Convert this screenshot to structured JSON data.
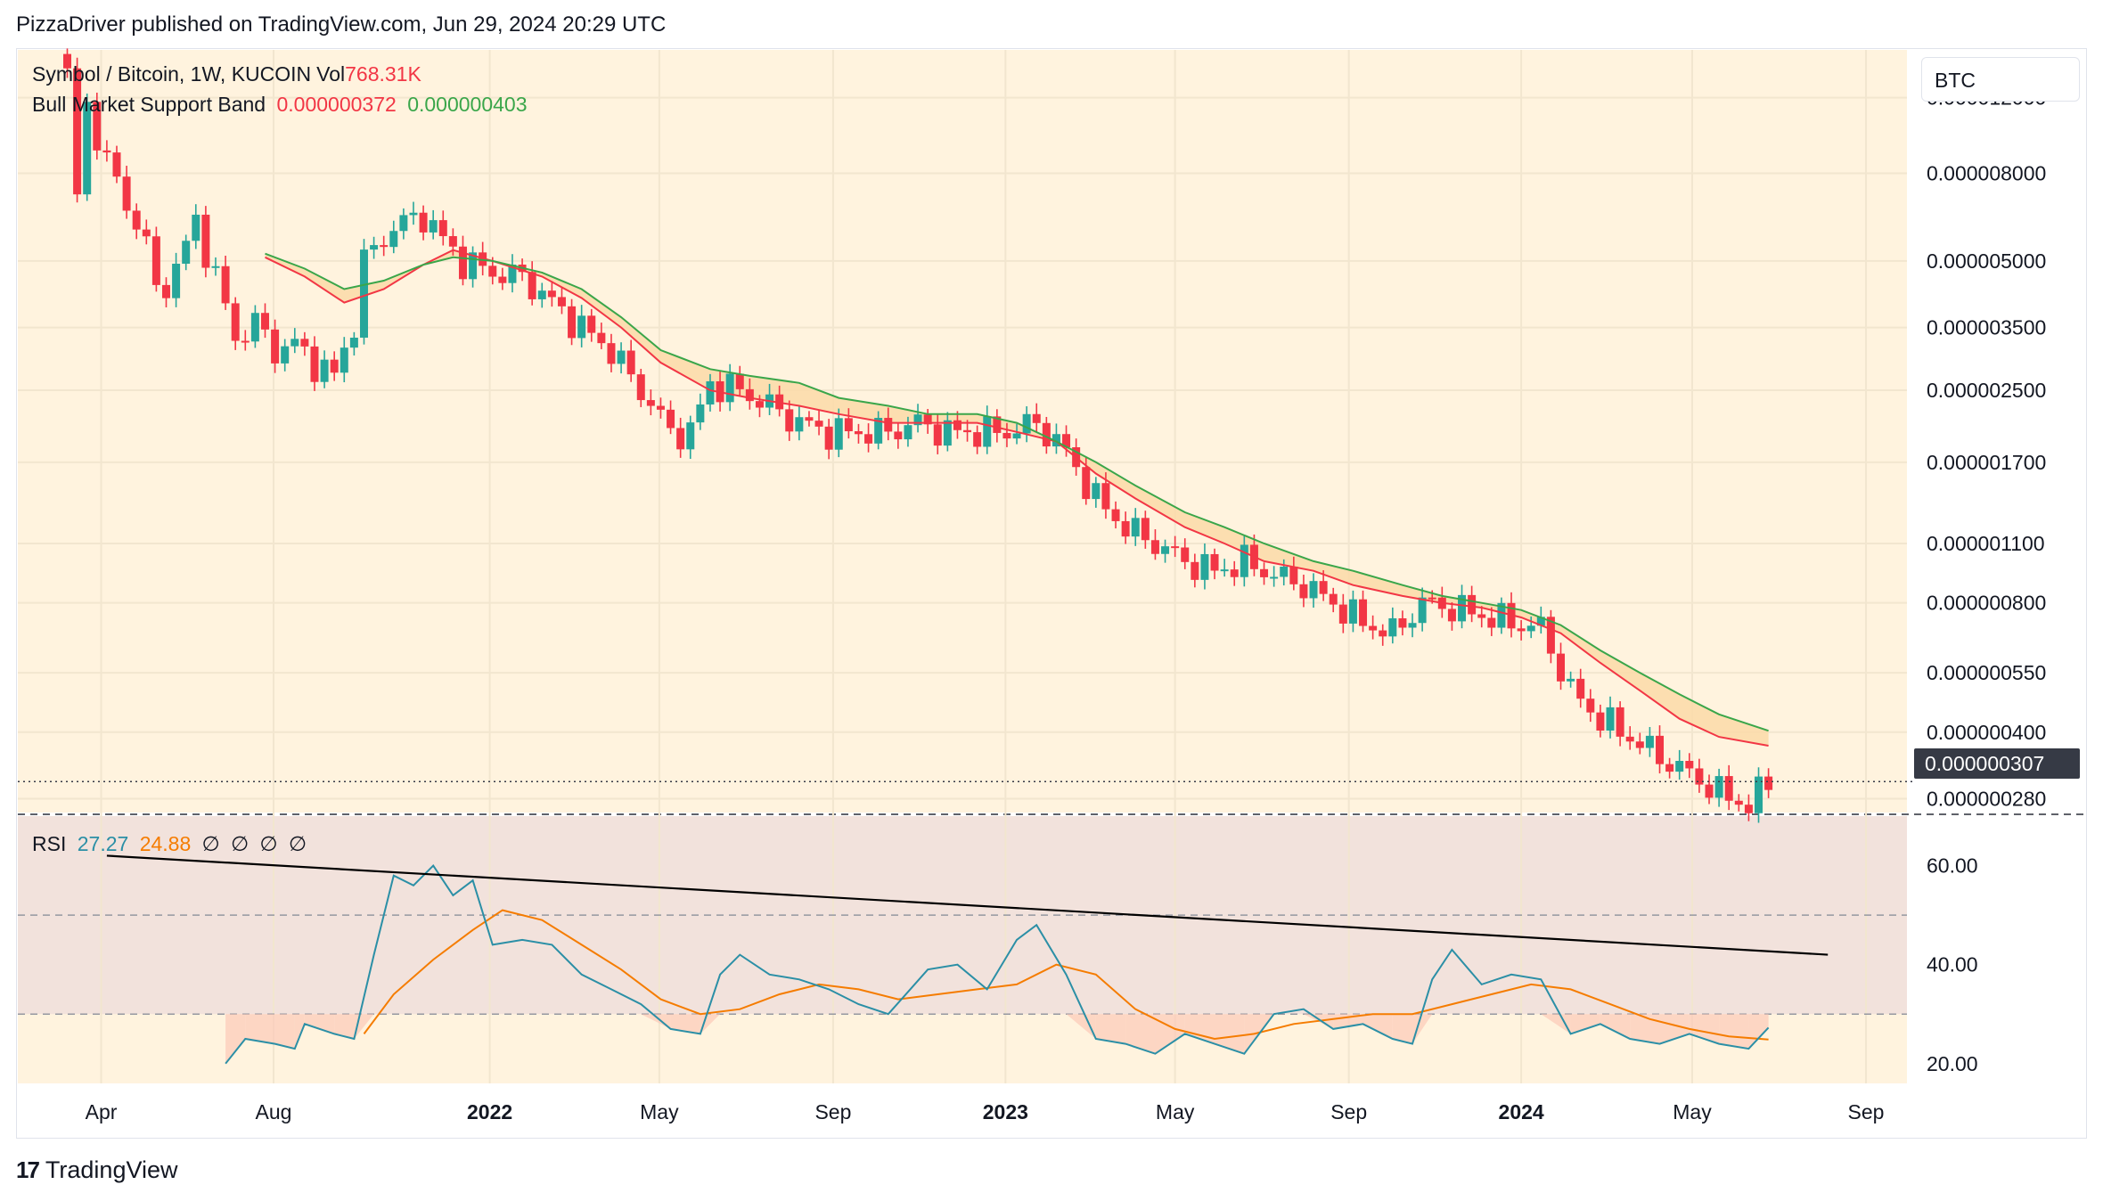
{
  "publisher_line": "PizzaDriver published on TradingView.com, Jun 29, 2024 20:29 UTC",
  "brand": {
    "name": "TradingView",
    "logo_icon": "tradingview-logo-icon"
  },
  "price_panel": {
    "symbol_line": "Symbol / Bitcoin, 1W, KUCOIN",
    "vol_label": "Vol",
    "vol_value": "768.31K",
    "band_label": "Bull Market Support Band",
    "band_value_1": "0.000000372",
    "band_value_2": "0.000000403",
    "currency_button": "BTC",
    "last_price": "0.000000307"
  },
  "rsi_panel": {
    "label": "RSI",
    "value_1": "27.27",
    "value_2": "24.88",
    "empty_values": [
      "∅",
      "∅",
      "∅",
      "∅"
    ]
  },
  "colors": {
    "background": "#fff3de",
    "up": "#26a69a",
    "down": "#f23645",
    "band_fill": "#fbd9a8",
    "band_fast": "#f23645",
    "band_slow": "#3aa64a",
    "rsi_line": "#2b8fa6",
    "rsi_ma": "#f57c00",
    "rsi_band": "#f2e2dc"
  },
  "chart_data": [
    {
      "type": "candlestick",
      "y_scale": "log",
      "ylim": [
        2.6e-07,
        1.55e-05
      ],
      "x_tick_labels": [
        {
          "label": "Apr",
          "date": "2021-04-01"
        },
        {
          "label": "Aug",
          "date": "2021-08-01"
        },
        {
          "label": "2022",
          "date": "2022-01-01"
        },
        {
          "label": "May",
          "date": "2022-05-01"
        },
        {
          "label": "Sep",
          "date": "2022-09-01"
        },
        {
          "label": "2023",
          "date": "2023-01-01"
        },
        {
          "label": "May",
          "date": "2023-05-01"
        },
        {
          "label": "Sep",
          "date": "2023-09-01"
        },
        {
          "label": "2024",
          "date": "2024-01-01"
        },
        {
          "label": "May",
          "date": "2024-05-01"
        },
        {
          "label": "Sep",
          "date": "2024-09-01"
        }
      ],
      "y_tick_labels": [
        "0.000012000",
        "0.000008000",
        "0.000005000",
        "0.000003500",
        "0.000002500",
        "0.000001700",
        "0.000001100",
        "0.000000800",
        "0.000000550",
        "0.000000400",
        "0.000000280"
      ],
      "y_tick_values": [
        1.2e-05,
        8e-06,
        5e-06,
        3.5e-06,
        2.5e-06,
        1.7e-06,
        1.1e-06,
        8e-07,
        5.5e-07,
        4e-07,
        2.8e-07
      ],
      "path_points": [
        [
          "2021-03-08",
          1.35e-05
        ],
        [
          "2021-03-15",
          7e-06
        ],
        [
          "2021-03-22",
          1.15e-05
        ],
        [
          "2021-04-05",
          8.5e-06
        ],
        [
          "2021-04-19",
          6.8e-06
        ],
        [
          "2021-05-03",
          5.5e-06
        ],
        [
          "2021-05-10",
          4.2e-06
        ],
        [
          "2021-05-24",
          4.8e-06
        ],
        [
          "2021-06-07",
          6.2e-06
        ],
        [
          "2021-06-21",
          4.6e-06
        ],
        [
          "2021-07-05",
          3.3e-06
        ],
        [
          "2021-07-19",
          3.6e-06
        ],
        [
          "2021-08-02",
          3.1e-06
        ],
        [
          "2021-08-16",
          3.2e-06
        ],
        [
          "2021-08-30",
          2.9e-06
        ],
        [
          "2021-09-13",
          2.7e-06
        ],
        [
          "2021-09-27",
          3.6e-06
        ],
        [
          "2021-10-04",
          5e-06
        ],
        [
          "2021-10-25",
          6e-06
        ],
        [
          "2021-11-15",
          6.4e-06
        ],
        [
          "2021-11-29",
          5.6e-06
        ],
        [
          "2021-12-13",
          5e-06
        ],
        [
          "2022-01-03",
          4.7e-06
        ],
        [
          "2022-01-24",
          4.6e-06
        ],
        [
          "2022-02-14",
          4e-06
        ],
        [
          "2022-03-07",
          3.5e-06
        ],
        [
          "2022-03-28",
          3.1e-06
        ],
        [
          "2022-04-18",
          2.5e-06
        ],
        [
          "2022-05-09",
          2e-06
        ],
        [
          "2022-05-23",
          2e-06
        ],
        [
          "2022-06-06",
          2.6e-06
        ],
        [
          "2022-06-27",
          2.5e-06
        ],
        [
          "2022-07-18",
          2.3e-06
        ],
        [
          "2022-08-08",
          2.1e-06
        ],
        [
          "2022-08-29",
          2e-06
        ],
        [
          "2022-09-19",
          2e-06
        ],
        [
          "2022-10-10",
          2e-06
        ],
        [
          "2022-10-31",
          2.1e-06
        ],
        [
          "2022-11-21",
          2e-06
        ],
        [
          "2022-12-12",
          2e-06
        ],
        [
          "2023-01-02",
          2e-06
        ],
        [
          "2023-01-23",
          2.1e-06
        ],
        [
          "2023-02-13",
          1.8e-06
        ],
        [
          "2023-03-06",
          1.4e-06
        ],
        [
          "2023-03-27",
          1.2e-06
        ],
        [
          "2023-04-17",
          1.1e-06
        ],
        [
          "2023-05-08",
          1e-06
        ],
        [
          "2023-05-29",
          9.5e-07
        ],
        [
          "2023-06-19",
          1e-06
        ],
        [
          "2023-07-10",
          9.3e-07
        ],
        [
          "2023-07-31",
          8.8e-07
        ],
        [
          "2023-08-21",
          8e-07
        ],
        [
          "2023-09-11",
          7.2e-07
        ],
        [
          "2023-10-02",
          6.8e-07
        ],
        [
          "2023-10-23",
          8e-07
        ],
        [
          "2023-11-13",
          7.8e-07
        ],
        [
          "2023-12-04",
          7.5e-07
        ],
        [
          "2023-12-25",
          7.2e-07
        ],
        [
          "2024-01-15",
          7e-07
        ],
        [
          "2024-02-05",
          5e-07
        ],
        [
          "2024-02-26",
          4.3e-07
        ],
        [
          "2024-03-18",
          3.9e-07
        ],
        [
          "2024-04-08",
          3.5e-07
        ],
        [
          "2024-04-29",
          3.2e-07
        ],
        [
          "2024-05-20",
          2.9e-07
        ],
        [
          "2024-06-10",
          2.7e-07
        ],
        [
          "2024-06-24",
          3.07e-07
        ]
      ],
      "band_fast": [
        [
          "2021-07-26",
          5.1e-06
        ],
        [
          "2021-08-23",
          4.6e-06
        ],
        [
          "2021-09-20",
          4e-06
        ],
        [
          "2021-10-18",
          4.3e-06
        ],
        [
          "2021-11-15",
          4.9e-06
        ],
        [
          "2021-12-06",
          5.3e-06
        ],
        [
          "2022-01-03",
          5e-06
        ],
        [
          "2022-02-07",
          4.6e-06
        ],
        [
          "2022-03-07",
          4.1e-06
        ],
        [
          "2022-04-04",
          3.5e-06
        ],
        [
          "2022-05-02",
          2.9e-06
        ],
        [
          "2022-06-06",
          2.5e-06
        ],
        [
          "2022-07-04",
          2.4e-06
        ],
        [
          "2022-08-08",
          2.3e-06
        ],
        [
          "2022-09-05",
          2.2e-06
        ],
        [
          "2022-10-10",
          2.1e-06
        ],
        [
          "2022-11-07",
          2.1e-06
        ],
        [
          "2022-12-12",
          2.1e-06
        ],
        [
          "2023-01-09",
          2e-06
        ],
        [
          "2023-02-06",
          1.9e-06
        ],
        [
          "2023-03-06",
          1.6e-06
        ],
        [
          "2023-04-03",
          1.4e-06
        ],
        [
          "2023-05-08",
          1.2e-06
        ],
        [
          "2023-06-05",
          1.1e-06
        ],
        [
          "2023-07-03",
          1e-06
        ],
        [
          "2023-08-07",
          9.5e-07
        ],
        [
          "2023-09-04",
          8.8e-07
        ],
        [
          "2023-10-09",
          8.3e-07
        ],
        [
          "2023-11-06",
          8e-07
        ],
        [
          "2023-12-04",
          7.8e-07
        ],
        [
          "2024-01-01",
          7.4e-07
        ],
        [
          "2024-01-29",
          6.8e-07
        ],
        [
          "2024-02-26",
          5.8e-07
        ],
        [
          "2024-03-25",
          5e-07
        ],
        [
          "2024-04-22",
          4.3e-07
        ],
        [
          "2024-05-20",
          3.9e-07
        ],
        [
          "2024-06-24",
          3.72e-07
        ]
      ],
      "band_slow": [
        [
          "2021-07-26",
          5.2e-06
        ],
        [
          "2021-08-23",
          4.8e-06
        ],
        [
          "2021-09-20",
          4.3e-06
        ],
        [
          "2021-10-18",
          4.5e-06
        ],
        [
          "2021-11-15",
          4.9e-06
        ],
        [
          "2021-12-06",
          5.1e-06
        ],
        [
          "2022-01-03",
          5e-06
        ],
        [
          "2022-02-07",
          4.7e-06
        ],
        [
          "2022-03-07",
          4.3e-06
        ],
        [
          "2022-04-04",
          3.7e-06
        ],
        [
          "2022-05-02",
          3.1e-06
        ],
        [
          "2022-06-06",
          2.8e-06
        ],
        [
          "2022-07-04",
          2.7e-06
        ],
        [
          "2022-08-08",
          2.6e-06
        ],
        [
          "2022-09-05",
          2.4e-06
        ],
        [
          "2022-10-10",
          2.3e-06
        ],
        [
          "2022-11-07",
          2.2e-06
        ],
        [
          "2022-12-12",
          2.2e-06
        ],
        [
          "2023-01-09",
          2.1e-06
        ],
        [
          "2023-02-06",
          1.9e-06
        ],
        [
          "2023-03-06",
          1.7e-06
        ],
        [
          "2023-04-03",
          1.5e-06
        ],
        [
          "2023-05-08",
          1.3e-06
        ],
        [
          "2023-06-05",
          1.2e-06
        ],
        [
          "2023-07-03",
          1.1e-06
        ],
        [
          "2023-08-07",
          1e-06
        ],
        [
          "2023-09-04",
          9.5e-07
        ],
        [
          "2023-10-09",
          8.8e-07
        ],
        [
          "2023-11-06",
          8.3e-07
        ],
        [
          "2023-12-04",
          8e-07
        ],
        [
          "2024-01-01",
          7.7e-07
        ],
        [
          "2024-01-29",
          7.1e-07
        ],
        [
          "2024-02-26",
          6.2e-07
        ],
        [
          "2024-03-25",
          5.5e-07
        ],
        [
          "2024-04-22",
          4.9e-07
        ],
        [
          "2024-05-20",
          4.4e-07
        ],
        [
          "2024-06-24",
          4.03e-07
        ]
      ]
    },
    {
      "type": "line",
      "name": "RSI",
      "ylim": [
        16,
        70
      ],
      "y_tick_labels": [
        "60.00",
        "40.00",
        "20.00"
      ],
      "y_tick_values": [
        60,
        40,
        20
      ],
      "guide_levels": [
        70,
        50,
        30
      ],
      "rsi": [
        [
          "2021-06-28",
          20
        ],
        [
          "2021-07-12",
          25
        ],
        [
          "2021-08-02",
          24
        ],
        [
          "2021-08-16",
          23
        ],
        [
          "2021-08-23",
          28
        ],
        [
          "2021-09-13",
          26
        ],
        [
          "2021-09-27",
          25
        ],
        [
          "2021-10-11",
          42
        ],
        [
          "2021-10-25",
          58
        ],
        [
          "2021-11-08",
          56
        ],
        [
          "2021-11-22",
          60
        ],
        [
          "2021-12-06",
          54
        ],
        [
          "2021-12-20",
          57
        ],
        [
          "2022-01-03",
          44
        ],
        [
          "2022-01-24",
          45
        ],
        [
          "2022-02-14",
          44
        ],
        [
          "2022-03-07",
          38
        ],
        [
          "2022-03-28",
          35
        ],
        [
          "2022-04-18",
          32
        ],
        [
          "2022-05-09",
          27
        ],
        [
          "2022-05-30",
          26
        ],
        [
          "2022-06-13",
          38
        ],
        [
          "2022-06-27",
          42
        ],
        [
          "2022-07-18",
          38
        ],
        [
          "2022-08-08",
          37
        ],
        [
          "2022-08-29",
          35
        ],
        [
          "2022-09-19",
          32
        ],
        [
          "2022-10-10",
          30
        ],
        [
          "2022-11-07",
          39
        ],
        [
          "2022-11-28",
          40
        ],
        [
          "2022-12-19",
          35
        ],
        [
          "2023-01-09",
          45
        ],
        [
          "2023-01-23",
          48
        ],
        [
          "2023-02-13",
          38
        ],
        [
          "2023-03-06",
          25
        ],
        [
          "2023-03-27",
          24
        ],
        [
          "2023-04-17",
          22
        ],
        [
          "2023-05-08",
          26
        ],
        [
          "2023-05-29",
          24
        ],
        [
          "2023-06-19",
          22
        ],
        [
          "2023-07-10",
          30
        ],
        [
          "2023-07-31",
          31
        ],
        [
          "2023-08-21",
          27
        ],
        [
          "2023-09-11",
          28
        ],
        [
          "2023-10-02",
          25
        ],
        [
          "2023-10-16",
          24
        ],
        [
          "2023-10-30",
          37
        ],
        [
          "2023-11-13",
          43
        ],
        [
          "2023-12-04",
          36
        ],
        [
          "2023-12-25",
          38
        ],
        [
          "2024-01-15",
          37
        ],
        [
          "2024-02-05",
          26
        ],
        [
          "2024-02-26",
          28
        ],
        [
          "2024-03-18",
          25
        ],
        [
          "2024-04-08",
          24
        ],
        [
          "2024-04-29",
          26
        ],
        [
          "2024-05-20",
          24
        ],
        [
          "2024-06-10",
          23
        ],
        [
          "2024-06-24",
          27.27
        ]
      ],
      "rsi_ma": [
        [
          "2021-10-04",
          26
        ],
        [
          "2021-10-25",
          34
        ],
        [
          "2021-11-22",
          41
        ],
        [
          "2021-12-20",
          47
        ],
        [
          "2022-01-10",
          51
        ],
        [
          "2022-02-07",
          49
        ],
        [
          "2022-03-07",
          44
        ],
        [
          "2022-04-04",
          39
        ],
        [
          "2022-05-02",
          33
        ],
        [
          "2022-05-30",
          30
        ],
        [
          "2022-06-27",
          31
        ],
        [
          "2022-07-25",
          34
        ],
        [
          "2022-08-22",
          36
        ],
        [
          "2022-09-19",
          35
        ],
        [
          "2022-10-17",
          33
        ],
        [
          "2022-11-14",
          34
        ],
        [
          "2022-12-12",
          35
        ],
        [
          "2023-01-09",
          36
        ],
        [
          "2023-02-06",
          40
        ],
        [
          "2023-03-06",
          38
        ],
        [
          "2023-04-03",
          31
        ],
        [
          "2023-05-01",
          27
        ],
        [
          "2023-05-29",
          25
        ],
        [
          "2023-06-26",
          26
        ],
        [
          "2023-07-24",
          28
        ],
        [
          "2023-08-21",
          29
        ],
        [
          "2023-09-18",
          30
        ],
        [
          "2023-10-16",
          30
        ],
        [
          "2023-11-13",
          32
        ],
        [
          "2023-12-11",
          34
        ],
        [
          "2024-01-08",
          36
        ],
        [
          "2024-02-05",
          35
        ],
        [
          "2024-03-04",
          32
        ],
        [
          "2024-04-01",
          29
        ],
        [
          "2024-04-29",
          27
        ],
        [
          "2024-05-27",
          25.5
        ],
        [
          "2024-06-24",
          24.88
        ]
      ],
      "trendline": [
        [
          "2021-04-05",
          62
        ],
        [
          "2024-08-05",
          42
        ]
      ]
    }
  ]
}
